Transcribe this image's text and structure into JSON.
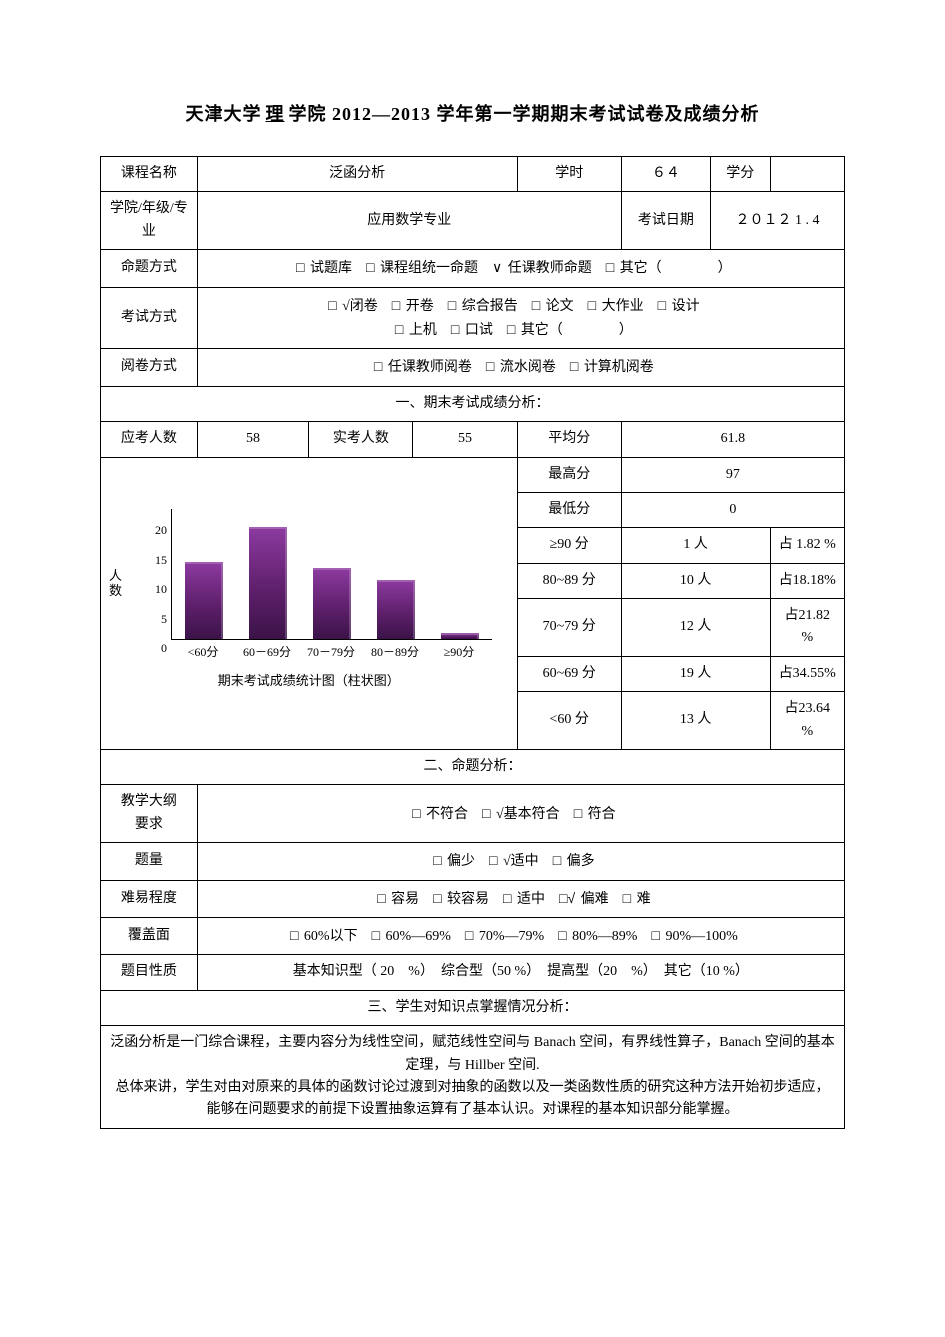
{
  "title_parts": {
    "prefix": "天津大学",
    "college": "理",
    "suffix": "学院 2012—2013 学年第一学期期末考试试卷及成绩分析"
  },
  "row_course": {
    "name_label": "课程名称",
    "name_value": "泛函分析",
    "hours_label": "学时",
    "hours_value": "６４",
    "credit_label": "学分",
    "credit_value": ""
  },
  "row_college": {
    "label": "学院/年级/专业",
    "value": "应用数学专业",
    "date_label": "考试日期",
    "date_value": "２０１２ 1 . 4"
  },
  "row_source": {
    "label": "命题方式",
    "opts": [
      {
        "box": "□",
        "text": "试题库"
      },
      {
        "box": "□",
        "text": "课程组统一命题"
      },
      {
        "box": "∨",
        "text": "任课教师命题"
      },
      {
        "box": "□",
        "text": "其它（　　　　）"
      }
    ]
  },
  "row_exam": {
    "label": "考试方式",
    "line1": [
      {
        "box": "□",
        "text": "√闭卷"
      },
      {
        "box": "□",
        "text": "开卷"
      },
      {
        "box": "□",
        "text": "综合报告"
      },
      {
        "box": "□",
        "text": "论文"
      },
      {
        "box": "□",
        "text": "大作业"
      },
      {
        "box": "□",
        "text": "设计"
      }
    ],
    "line2": [
      {
        "box": "□",
        "text": "上机"
      },
      {
        "box": "□",
        "text": "口试"
      },
      {
        "box": "□",
        "text": "其它（　　　　）"
      }
    ]
  },
  "row_mark": {
    "label": "阅卷方式",
    "opts": [
      {
        "box": "□",
        "text": "任课教师阅卷"
      },
      {
        "box": "□",
        "text": "流水阅卷"
      },
      {
        "box": "□",
        "text": "计算机阅卷"
      }
    ]
  },
  "section1": "一、期末考试成绩分析：",
  "row_cnt": {
    "should_label": "应考人数",
    "should_value": "58",
    "actual_label": "实考人数",
    "actual_value": "55",
    "avg_label": "平均分",
    "avg_value": "61.8"
  },
  "side_stats": [
    {
      "k": "最高分",
      "v": "97"
    },
    {
      "k": "最低分",
      "v": "0"
    },
    {
      "k": "≥90 分",
      "p": "1 人",
      "pc": "占 1.82 %"
    },
    {
      "k": "80~89 分",
      "p": "10 人",
      "pc": "占18.18%"
    },
    {
      "k": "70~79 分",
      "p": "12 人",
      "pc": "占21.82 %"
    },
    {
      "k": "60~69 分",
      "p": "19 人",
      "pc": "占34.55%"
    },
    {
      "k": "<60 分",
      "p": "13 人",
      "pc": "占23.64 %"
    }
  ],
  "chart": {
    "type": "bar",
    "y_axis_label": "人\n数",
    "caption": "期末考试成绩统计图（柱状图）",
    "y_max": 22,
    "y_ticks": [
      0,
      5,
      10,
      15,
      20
    ],
    "categories": [
      "<60分",
      "60－69分",
      "70－79分",
      "80－89分",
      "≥90分"
    ],
    "values": [
      13,
      19,
      12,
      10,
      1
    ],
    "bar_color": "#5b1e68",
    "axis_color": "#000000",
    "background": "#ffffff"
  },
  "section2": "二、命题分析：",
  "row_syllabus": {
    "label": "教学大纲\n要求",
    "opts": [
      {
        "box": "□",
        "text": "不符合"
      },
      {
        "box": "□",
        "text": "√基本符合"
      },
      {
        "box": "□",
        "text": "符合"
      }
    ]
  },
  "row_amount": {
    "label": "题量",
    "opts": [
      {
        "box": "□",
        "text": "偏少"
      },
      {
        "box": "□",
        "text": "√适中"
      },
      {
        "box": "□",
        "text": "偏多"
      }
    ]
  },
  "row_diff": {
    "label": "难易程度",
    "opts": [
      {
        "box": "□",
        "text": "容易"
      },
      {
        "box": "□",
        "text": "较容易"
      },
      {
        "box": "□",
        "text": "适中"
      },
      {
        "box": "□√",
        "text": "偏难"
      },
      {
        "box": "□",
        "text": "难"
      }
    ]
  },
  "row_cover": {
    "label": "覆盖面",
    "opts": [
      {
        "box": "□",
        "text": "60%以下"
      },
      {
        "box": "□",
        "text": "60%—69%"
      },
      {
        "box": "□",
        "text": "70%—79%"
      },
      {
        "box": "□",
        "text": "80%—89%"
      },
      {
        "box": "□",
        "text": "90%—100%"
      }
    ]
  },
  "row_type": {
    "label": "题目性质",
    "text": "基本知识型（ 20　%）　综合型（50 %）　提高型（20　%）　其它（10 %）"
  },
  "section3": "三、学生对知识点掌握情况分析：",
  "analysis_text": "泛函分析是一门综合课程，主要内容分为线性空间，赋范线性空间与 Banach 空间，有界线性算子，Banach 空间的基本定理，与 Hillber 空间.\n总体来讲，学生对由对原来的具体的函数讨论过渡到对抽象的函数以及一类函数性质的研究这种方法开始初步适应，能够在问题要求的前提下设置抽象运算有了基本认识。对课程的基本知识部分能掌握。"
}
